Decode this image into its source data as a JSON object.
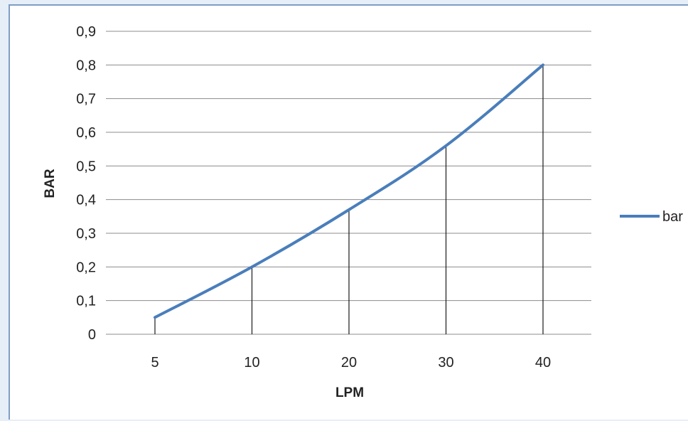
{
  "chart_data": {
    "type": "line",
    "categories": [
      "5",
      "10",
      "20",
      "30",
      "40"
    ],
    "series": [
      {
        "name": "bar",
        "values": [
          0.05,
          0.2,
          0.37,
          0.56,
          0.8
        ]
      }
    ],
    "xlabel": "LPM",
    "ylabel": "BAR",
    "ylim": [
      0,
      0.9
    ],
    "yticks": [
      "0",
      "0,1",
      "0,2",
      "0,3",
      "0,4",
      "0,5",
      "0,6",
      "0,7",
      "0,8",
      "0,9"
    ],
    "grid": true,
    "drop_lines": true,
    "legend_position": "right",
    "colors": {
      "series": "#4a7ebb",
      "grid": "#8c8c8c",
      "drop_line": "#1a1a1a",
      "frame": "#7f9dc4"
    }
  }
}
